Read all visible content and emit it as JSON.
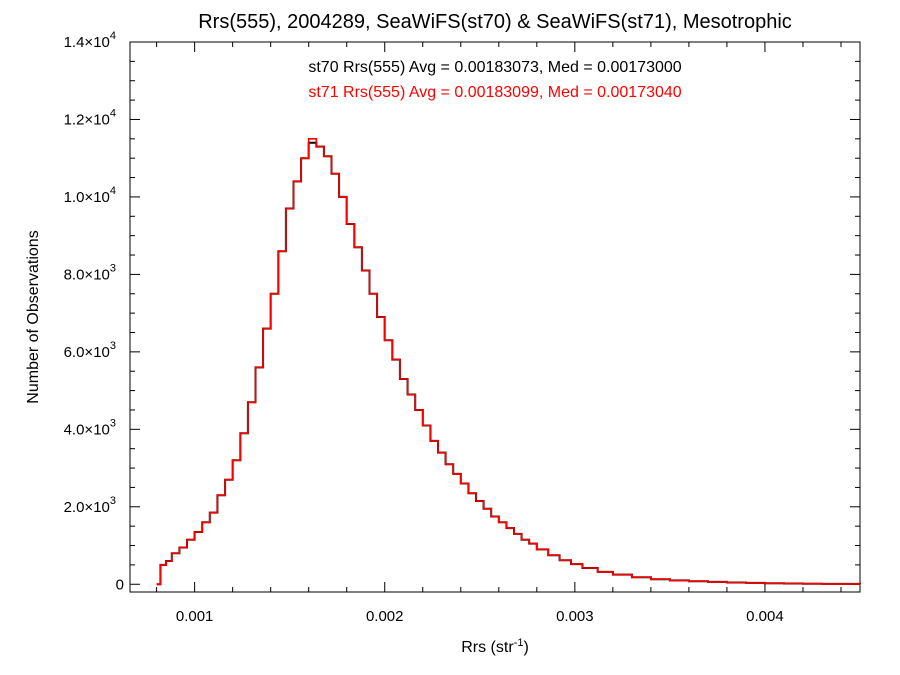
{
  "chart_data": {
    "type": "line",
    "title": "Rrs(555), 2004289, SeaWiFS(st70) & SeaWiFS(st71), Mesotrophic",
    "xlabel": {
      "base": "Rrs (str",
      "sup": "-1",
      "tail": ")"
    },
    "ylabel": "Number of Observations",
    "xlim": [
      0.00066,
      0.0045
    ],
    "ylim": [
      -200,
      14000
    ],
    "xticks": [
      {
        "value": 0.001,
        "label": "0.001"
      },
      {
        "value": 0.002,
        "label": "0.002"
      },
      {
        "value": 0.003,
        "label": "0.003"
      },
      {
        "value": 0.004,
        "label": "0.004"
      }
    ],
    "yticks": [
      {
        "value": 0,
        "mant": "0",
        "exp": ""
      },
      {
        "value": 2000,
        "mant": "2.0×10",
        "exp": "3"
      },
      {
        "value": 4000,
        "mant": "4.0×10",
        "exp": "3"
      },
      {
        "value": 6000,
        "mant": "6.0×10",
        "exp": "3"
      },
      {
        "value": 8000,
        "mant": "8.0×10",
        "exp": "3"
      },
      {
        "value": 10000,
        "mant": "1.0×10",
        "exp": "4"
      },
      {
        "value": 12000,
        "mant": "1.2×10",
        "exp": "4"
      },
      {
        "value": 14000,
        "mant": "1.4×10",
        "exp": "4"
      }
    ],
    "annotations": [
      {
        "text": "st70 Rrs(555) Avg = 0.00183073, Med = 0.00173000",
        "color": "#000000"
      },
      {
        "text": "st71 Rrs(555) Avg = 0.00183099, Med = 0.00173040",
        "color": "#ff0000"
      }
    ],
    "series": [
      {
        "color": "#000000",
        "style": "step",
        "points": [
          [
            0.0008,
            0
          ],
          [
            0.00082,
            500
          ],
          [
            0.00085,
            600
          ],
          [
            0.00088,
            800
          ],
          [
            0.00092,
            950
          ],
          [
            0.00096,
            1150
          ],
          [
            0.001,
            1350
          ],
          [
            0.00104,
            1600
          ],
          [
            0.00108,
            1850
          ],
          [
            0.00112,
            2300
          ],
          [
            0.00116,
            2700
          ],
          [
            0.0012,
            3200
          ],
          [
            0.00124,
            3900
          ],
          [
            0.00128,
            4700
          ],
          [
            0.00132,
            5600
          ],
          [
            0.00136,
            6600
          ],
          [
            0.0014,
            7500
          ],
          [
            0.00144,
            8600
          ],
          [
            0.00148,
            9700
          ],
          [
            0.00152,
            10400
          ],
          [
            0.00156,
            11000
          ],
          [
            0.0016,
            11400
          ],
          [
            0.00164,
            11300
          ],
          [
            0.00168,
            11050
          ],
          [
            0.00172,
            10600
          ],
          [
            0.00176,
            10000
          ],
          [
            0.0018,
            9300
          ],
          [
            0.00184,
            8700
          ],
          [
            0.00188,
            8100
          ],
          [
            0.00192,
            7500
          ],
          [
            0.00196,
            6900
          ],
          [
            0.002,
            6300
          ],
          [
            0.00204,
            5800
          ],
          [
            0.00208,
            5300
          ],
          [
            0.00212,
            4900
          ],
          [
            0.00216,
            4500
          ],
          [
            0.0022,
            4100
          ],
          [
            0.00224,
            3700
          ],
          [
            0.00228,
            3400
          ],
          [
            0.00232,
            3100
          ],
          [
            0.00236,
            2850
          ],
          [
            0.0024,
            2600
          ],
          [
            0.00244,
            2350
          ],
          [
            0.00248,
            2150
          ],
          [
            0.00252,
            1950
          ],
          [
            0.00256,
            1750
          ],
          [
            0.0026,
            1600
          ],
          [
            0.00264,
            1450
          ],
          [
            0.00268,
            1300
          ],
          [
            0.00272,
            1150
          ],
          [
            0.00276,
            1050
          ],
          [
            0.0028,
            900
          ],
          [
            0.00286,
            750
          ],
          [
            0.00292,
            620
          ],
          [
            0.00298,
            520
          ],
          [
            0.00304,
            420
          ],
          [
            0.00312,
            320
          ],
          [
            0.0032,
            250
          ],
          [
            0.0033,
            180
          ],
          [
            0.0034,
            130
          ],
          [
            0.0035,
            100
          ],
          [
            0.0036,
            80
          ],
          [
            0.0037,
            60
          ],
          [
            0.0038,
            45
          ],
          [
            0.0039,
            35
          ],
          [
            0.004,
            25
          ],
          [
            0.0041,
            20
          ],
          [
            0.0042,
            15
          ],
          [
            0.0043,
            10
          ],
          [
            0.0044,
            8
          ],
          [
            0.0045,
            5
          ]
        ]
      },
      {
        "color": "#ff0000",
        "style": "step",
        "points": [
          [
            0.0008,
            0
          ],
          [
            0.00082,
            500
          ],
          [
            0.00085,
            600
          ],
          [
            0.00088,
            800
          ],
          [
            0.00092,
            950
          ],
          [
            0.00096,
            1150
          ],
          [
            0.001,
            1350
          ],
          [
            0.00104,
            1600
          ],
          [
            0.00108,
            1850
          ],
          [
            0.00112,
            2300
          ],
          [
            0.00116,
            2700
          ],
          [
            0.0012,
            3200
          ],
          [
            0.00124,
            3900
          ],
          [
            0.00128,
            4700
          ],
          [
            0.00132,
            5600
          ],
          [
            0.00136,
            6600
          ],
          [
            0.0014,
            7500
          ],
          [
            0.00144,
            8600
          ],
          [
            0.00148,
            9700
          ],
          [
            0.00152,
            10400
          ],
          [
            0.00156,
            11000
          ],
          [
            0.0016,
            11500
          ],
          [
            0.00164,
            11300
          ],
          [
            0.00168,
            11050
          ],
          [
            0.00172,
            10600
          ],
          [
            0.00176,
            10000
          ],
          [
            0.0018,
            9300
          ],
          [
            0.00184,
            8700
          ],
          [
            0.00188,
            8100
          ],
          [
            0.00192,
            7500
          ],
          [
            0.00196,
            6900
          ],
          [
            0.002,
            6300
          ],
          [
            0.00204,
            5800
          ],
          [
            0.00208,
            5300
          ],
          [
            0.00212,
            4900
          ],
          [
            0.00216,
            4500
          ],
          [
            0.0022,
            4100
          ],
          [
            0.00224,
            3700
          ],
          [
            0.00228,
            3400
          ],
          [
            0.00232,
            3100
          ],
          [
            0.00236,
            2850
          ],
          [
            0.0024,
            2600
          ],
          [
            0.00244,
            2350
          ],
          [
            0.00248,
            2150
          ],
          [
            0.00252,
            1950
          ],
          [
            0.00256,
            1750
          ],
          [
            0.0026,
            1600
          ],
          [
            0.00264,
            1450
          ],
          [
            0.00268,
            1300
          ],
          [
            0.00272,
            1150
          ],
          [
            0.00276,
            1050
          ],
          [
            0.0028,
            900
          ],
          [
            0.00286,
            750
          ],
          [
            0.00292,
            620
          ],
          [
            0.00298,
            520
          ],
          [
            0.00304,
            420
          ],
          [
            0.00312,
            320
          ],
          [
            0.0032,
            250
          ],
          [
            0.0033,
            180
          ],
          [
            0.0034,
            130
          ],
          [
            0.0035,
            100
          ],
          [
            0.0036,
            80
          ],
          [
            0.0037,
            60
          ],
          [
            0.0038,
            45
          ],
          [
            0.0039,
            35
          ],
          [
            0.004,
            25
          ],
          [
            0.0041,
            20
          ],
          [
            0.0042,
            15
          ],
          [
            0.0043,
            10
          ],
          [
            0.0044,
            8
          ],
          [
            0.0045,
            5
          ]
        ]
      }
    ]
  }
}
